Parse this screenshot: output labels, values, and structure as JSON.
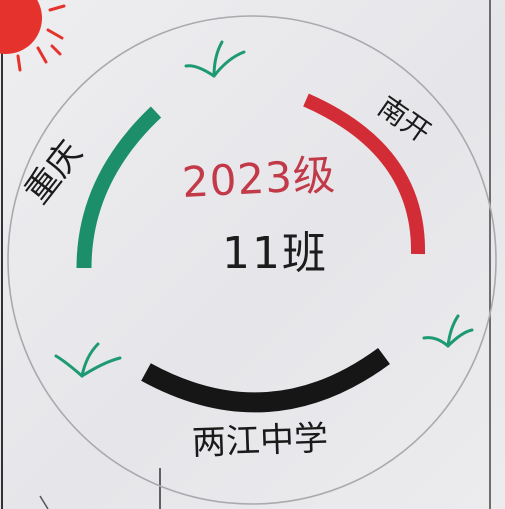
{
  "drawing": {
    "year": "2023级",
    "class_name": "11班",
    "city": "重庆",
    "school_short": "南开",
    "school_full": "两江中学"
  },
  "colors": {
    "green_arc": "#1c8f6a",
    "red_arc": "#d22c36",
    "black_arc": "#161616",
    "sun": "#e5322d",
    "circle_outline": "#a9a9ae",
    "grass": "#1e9a72"
  }
}
